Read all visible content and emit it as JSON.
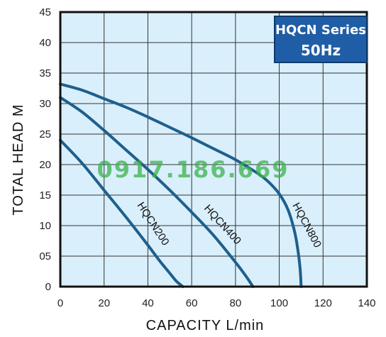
{
  "chart_data": {
    "type": "line",
    "xlabel": "CAPACITY L/min",
    "ylabel": "TOTAL HEAD M",
    "xlim": [
      0,
      140
    ],
    "ylim": [
      0,
      45
    ],
    "x_ticks": [
      "0",
      "20",
      "40",
      "60",
      "80",
      "100",
      "120",
      "140"
    ],
    "y_ticks": [
      "0",
      "05",
      "10",
      "15",
      "20",
      "25",
      "30",
      "35",
      "40",
      "45"
    ],
    "grid": true,
    "series": [
      {
        "name": "HQCN200",
        "x": [
          0,
          10,
          20,
          30,
          40,
          45,
          50,
          53,
          56
        ],
        "y": [
          24,
          20.2,
          15.8,
          11.4,
          6.8,
          4.4,
          2.2,
          0.9,
          0
        ]
      },
      {
        "name": "HQCN400",
        "x": [
          0,
          10,
          20,
          30,
          40,
          50,
          60,
          70,
          80,
          85,
          88
        ],
        "y": [
          31,
          28.6,
          25.6,
          22.4,
          19.2,
          15.8,
          12.2,
          8.4,
          4.0,
          1.6,
          0
        ]
      },
      {
        "name": "HQCN800",
        "x": [
          0,
          10,
          20,
          30,
          40,
          50,
          60,
          70,
          80,
          90,
          95,
          100,
          104,
          107,
          108.5,
          109.5,
          110
        ],
        "y": [
          33.2,
          32.2,
          30.8,
          29.4,
          27.8,
          26.1,
          24.4,
          22.6,
          20.8,
          18.6,
          17.2,
          15.2,
          12.6,
          9,
          6,
          3,
          0
        ]
      }
    ],
    "legend": {
      "title": "HQCN Series",
      "subtitle": "50Hz",
      "position": "top-right"
    },
    "watermark": "0917.186.669",
    "colors": {
      "plot_background": "#d9effc",
      "grid": "#333333",
      "line": "#1f5f8b",
      "badge": "#1f5ea6",
      "watermark": "#3bb24a"
    }
  }
}
